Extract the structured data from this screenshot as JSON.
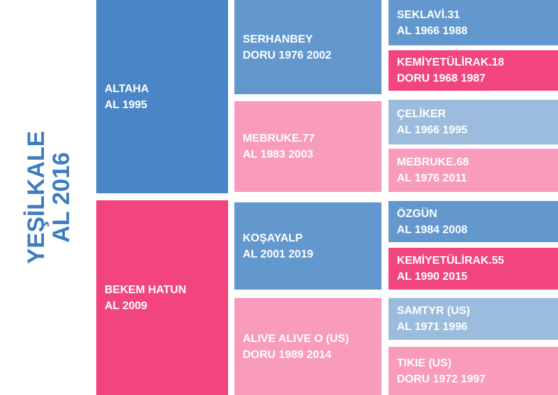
{
  "subject": {
    "name": "YEŞİLKALE",
    "detail": "AL 2016"
  },
  "sire": {
    "name": "ALTAHA",
    "detail": "AL 1995"
  },
  "dam": {
    "name": "BEKEM HATUN",
    "detail": "AL 2009"
  },
  "grandparents": [
    {
      "name": "SERHANBEY",
      "detail": "DORU 1976 2002"
    },
    {
      "name": "MEBRUKE.77",
      "detail": "AL 1983 2003"
    },
    {
      "name": "KOŞAYALP",
      "detail": "AL 2001 2019"
    },
    {
      "name": "ALIVE ALIVE O (US)",
      "detail": "DORU 1989 2014"
    }
  ],
  "great_grandparents": [
    {
      "name": "SEKLAVİ.31",
      "detail": "AL 1966 1988"
    },
    {
      "name": "KEMİYETÜLİRAK.18",
      "detail": "DORU 1968 1987"
    },
    {
      "name": "ÇELİKER",
      "detail": "AL 1966 1995"
    },
    {
      "name": "MEBRUKE.68",
      "detail": "AL 1976 2011"
    },
    {
      "name": "ÖZGÜN",
      "detail": "AL 1984 2008"
    },
    {
      "name": "KEMİYETÜLİRAK.55",
      "detail": "AL 1990 2015"
    },
    {
      "name": "SAMTYR (US)",
      "detail": "AL 1971 1996"
    },
    {
      "name": "TIKIE (US)",
      "detail": "DORU 1972 1997"
    }
  ]
}
